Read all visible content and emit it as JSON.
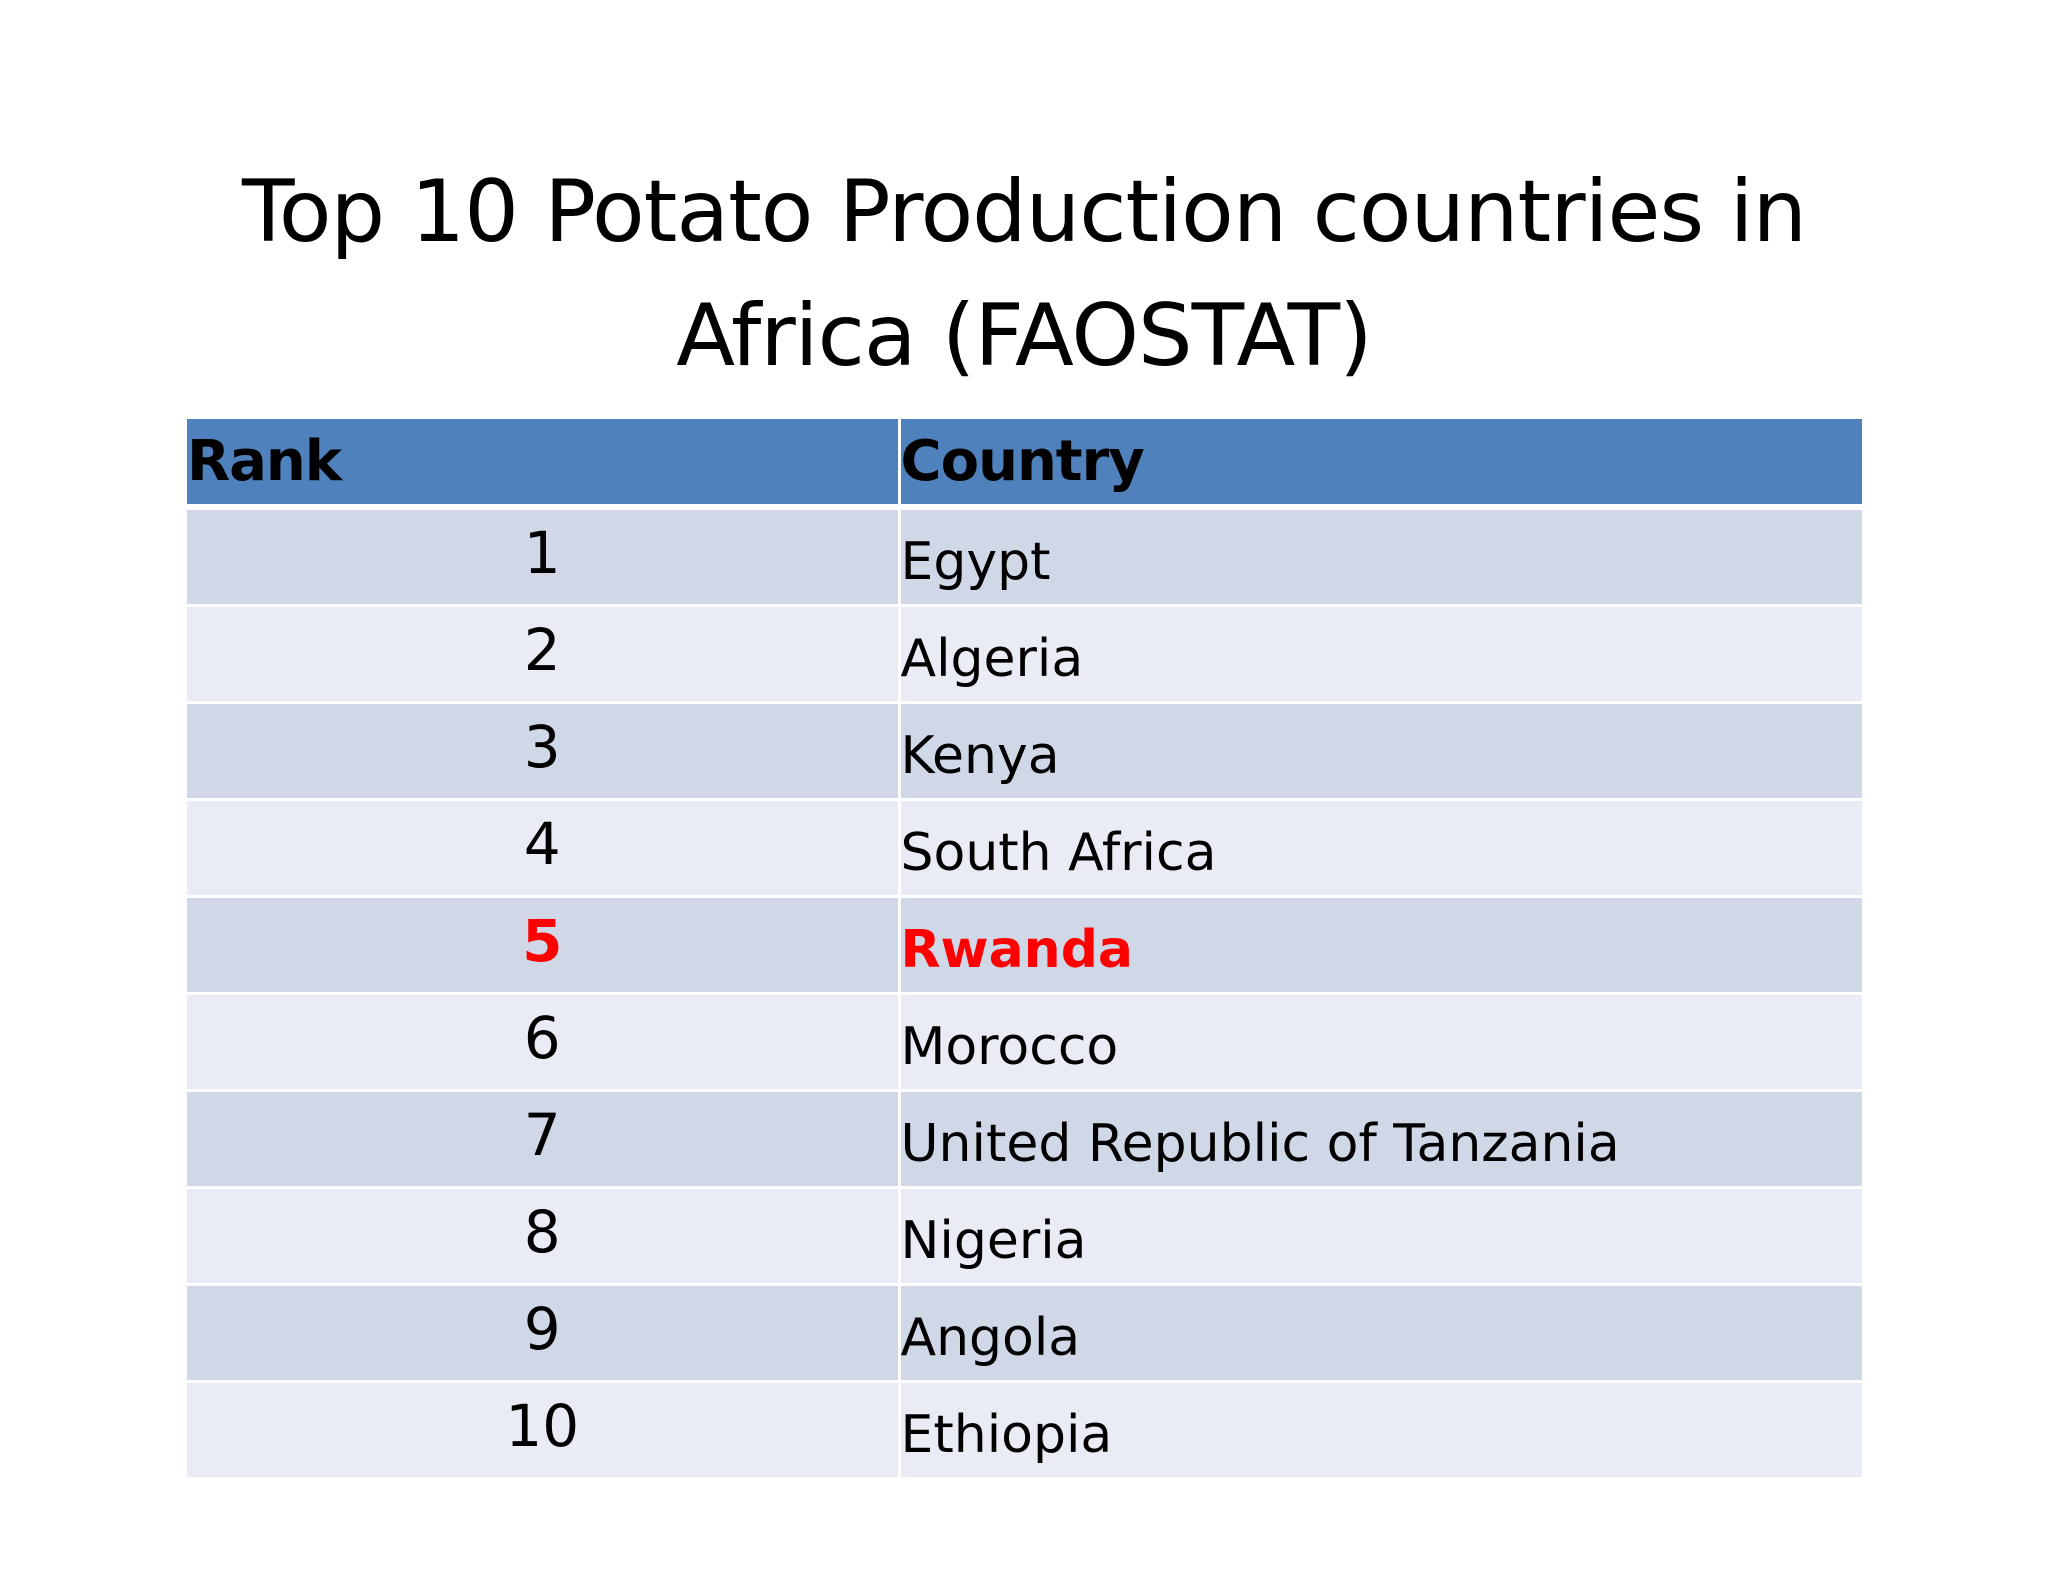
{
  "title": {
    "line1": "Top 10 Potato Production countries in",
    "line2": "Africa (FAOSTAT)"
  },
  "table": {
    "headers": [
      "Rank",
      "Country"
    ],
    "rows": [
      {
        "rank": "1",
        "country": "Egypt"
      },
      {
        "rank": "2",
        "country": "Algeria"
      },
      {
        "rank": "3",
        "country": "Kenya"
      },
      {
        "rank": "4",
        "country": "South Africa"
      },
      {
        "rank": "5",
        "country": "Rwanda",
        "highlighted": true
      },
      {
        "rank": "6",
        "country": "Morocco"
      },
      {
        "rank": "7",
        "country": "United Republic of Tanzania"
      },
      {
        "rank": "8",
        "country": "Nigeria"
      },
      {
        "rank": "9",
        "country": "Angola"
      },
      {
        "rank": "10",
        "country": "Ethiopia"
      }
    ]
  },
  "colors": {
    "header_bg": "#4f81bd",
    "row_odd_bg": "#d0d8e8",
    "row_even_bg": "#e9ebf5",
    "highlight_text": "#ff0000"
  }
}
